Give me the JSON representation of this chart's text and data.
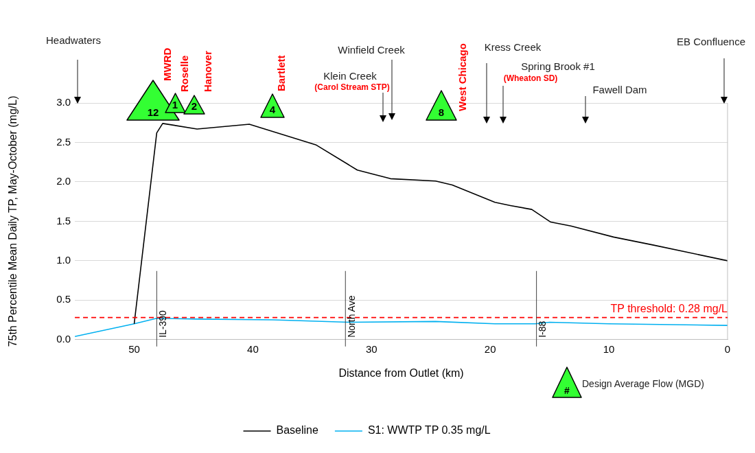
{
  "chart_data": {
    "type": "line",
    "xlabel": "Distance from Outlet (km)",
    "ylabel": "75th Percentile Mean Daily TP, May-October (mg/L)",
    "xlim": [
      55,
      0
    ],
    "xticks": [
      50,
      40,
      30,
      20,
      10,
      0
    ],
    "ylim": [
      0,
      3
    ],
    "yticks": [
      {
        "value": 0,
        "label": "0.0"
      },
      {
        "value": 0.5,
        "label": "0.5"
      },
      {
        "value": 1,
        "label": "1.0"
      },
      {
        "value": 1.5,
        "label": "1.5"
      },
      {
        "value": 2,
        "label": "2.0"
      },
      {
        "value": 2.5,
        "label": "2.5"
      },
      {
        "value": 3,
        "label": "3.0"
      }
    ],
    "grid": "y",
    "legend": "bottom",
    "series": [
      {
        "name": "Baseline",
        "color": "#000000",
        "x": [
          50.0,
          48.1,
          47.6,
          44.7,
          40.3,
          34.7,
          31.2,
          28.4,
          24.6,
          23.2,
          19.6,
          18.3,
          16.5,
          14.9,
          13.2,
          9.6,
          6.3,
          0
        ],
        "values": [
          0.2,
          2.62,
          2.74,
          2.67,
          2.73,
          2.47,
          2.15,
          2.04,
          2.01,
          1.96,
          1.74,
          1.7,
          1.65,
          1.49,
          1.44,
          1.3,
          1.2,
          1.0
        ]
      },
      {
        "name": "S1: WWTP TP 0.35 mg/L",
        "color": "#00b0f0",
        "x": [
          55,
          50,
          48.1,
          44.7,
          38.3,
          31.9,
          24.6,
          19.6,
          16.2,
          15.0,
          10,
          0
        ],
        "values": [
          0.04,
          0.2,
          0.27,
          0.26,
          0.25,
          0.22,
          0.23,
          0.2,
          0.2,
          0.22,
          0.2,
          0.18
        ]
      }
    ],
    "ref_lines": [
      {
        "axis": "y",
        "value": 0.28,
        "label": "TP threshold: 0.28 mg/L",
        "color": "#ff0000",
        "line_style": "dashed"
      },
      {
        "axis": "x",
        "value": 48.1,
        "label": "IL-390",
        "color": "#404040"
      },
      {
        "axis": "x",
        "value": 32.2,
        "label": "North Ave",
        "color": "#404040"
      },
      {
        "axis": "x",
        "value": 16.1,
        "label": "I-88",
        "color": "#404040"
      }
    ],
    "annotations": [
      "Headwaters",
      "EB Confluence",
      "Klein Creek",
      "(Carol Stream STP)",
      "Winfield Creek",
      "Kress Creek",
      "Spring Brook #1",
      "(Wheaton SD)",
      "Fawell Dam",
      "12",
      "1",
      "2",
      "4",
      "8",
      "MWRD",
      "Roselle",
      "Hanover",
      "Bartlett",
      "West Chicago",
      "#",
      "Design Average Flow (MGD)"
    ]
  }
}
